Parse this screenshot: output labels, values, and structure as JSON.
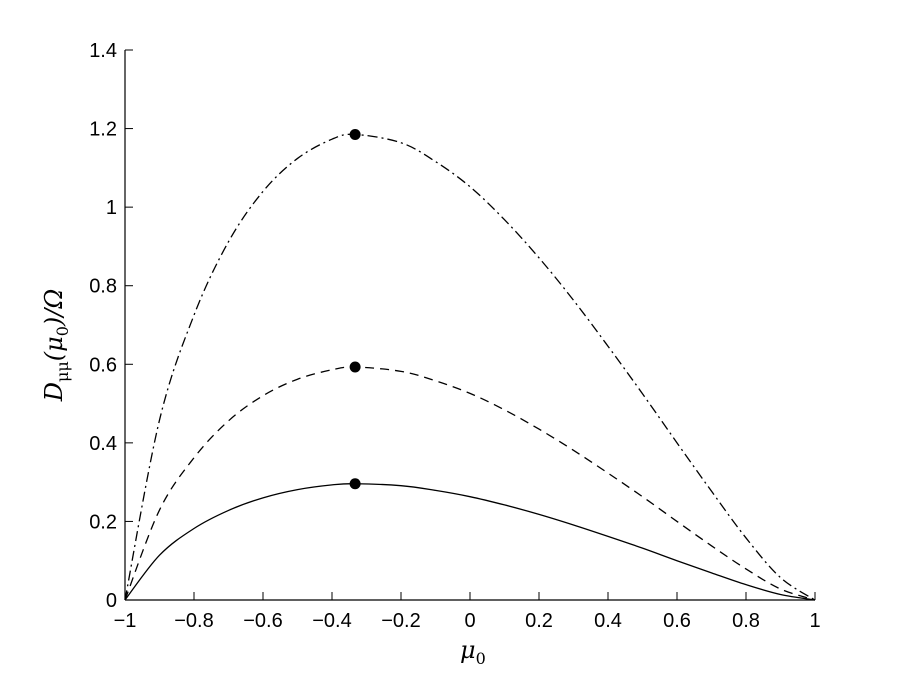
{
  "chart_data": {
    "type": "line",
    "xlabel": "μ0",
    "ylabel": "Dμμ(μ0)/Ω",
    "xlim": [
      -1,
      1
    ],
    "ylim": [
      0,
      1.4
    ],
    "xticks": [
      -1,
      -0.8,
      -0.6,
      -0.4,
      -0.2,
      0,
      0.2,
      0.4,
      0.6,
      0.8,
      1
    ],
    "xtick_labels": [
      "−1",
      "−0.8",
      "−0.6",
      "−0.4",
      "−0.2",
      "0",
      "0.2",
      "0.4",
      "0.6",
      "0.8",
      "1"
    ],
    "yticks": [
      0,
      0.2,
      0.4,
      0.6,
      0.8,
      1,
      1.2,
      1.4
    ],
    "ytick_labels": [
      "0",
      "0.2",
      "0.4",
      "0.6",
      "0.8",
      "1",
      "1.2",
      "1.4"
    ],
    "grid": false,
    "legend": "none",
    "series": [
      {
        "line_style": "solid",
        "x": [
          -1,
          -0.9,
          -0.8,
          -0.7,
          -0.6,
          -0.5,
          -0.4,
          -0.333,
          -0.2,
          -0.1,
          0,
          0.1,
          0.2,
          0.3,
          0.4,
          0.5,
          0.6,
          0.7,
          0.8,
          0.9,
          1
        ],
        "y": [
          0,
          0.114,
          0.182,
          0.228,
          0.26,
          0.281,
          0.293,
          0.296,
          0.291,
          0.279,
          0.263,
          0.242,
          0.218,
          0.191,
          0.162,
          0.132,
          0.1,
          0.069,
          0.039,
          0.014,
          0
        ]
      },
      {
        "line_style": "dashed",
        "x": [
          -1,
          -0.9,
          -0.8,
          -0.7,
          -0.6,
          -0.5,
          -0.4,
          -0.333,
          -0.2,
          -0.1,
          0,
          0.1,
          0.2,
          0.3,
          0.4,
          0.5,
          0.6,
          0.7,
          0.8,
          0.9,
          1
        ],
        "y": [
          0,
          0.229,
          0.362,
          0.456,
          0.52,
          0.562,
          0.586,
          0.593,
          0.582,
          0.558,
          0.526,
          0.484,
          0.435,
          0.381,
          0.323,
          0.263,
          0.2,
          0.138,
          0.079,
          0.028,
          0
        ]
      },
      {
        "line_style": "dash-dot",
        "x": [
          -1,
          -0.9,
          -0.8,
          -0.7,
          -0.6,
          -0.5,
          -0.4,
          -0.333,
          -0.2,
          -0.1,
          0,
          0.1,
          0.2,
          0.3,
          0.4,
          0.5,
          0.6,
          0.7,
          0.8,
          0.9,
          1
        ],
        "y": [
          0,
          0.458,
          0.725,
          0.912,
          1.04,
          1.124,
          1.173,
          1.185,
          1.164,
          1.116,
          1.052,
          0.968,
          0.871,
          0.763,
          0.646,
          0.525,
          0.4,
          0.277,
          0.158,
          0.057,
          0
        ]
      }
    ],
    "markers": [
      {
        "x": -0.333,
        "y": 0.296
      },
      {
        "x": -0.333,
        "y": 0.593
      },
      {
        "x": -0.333,
        "y": 1.185
      }
    ]
  }
}
